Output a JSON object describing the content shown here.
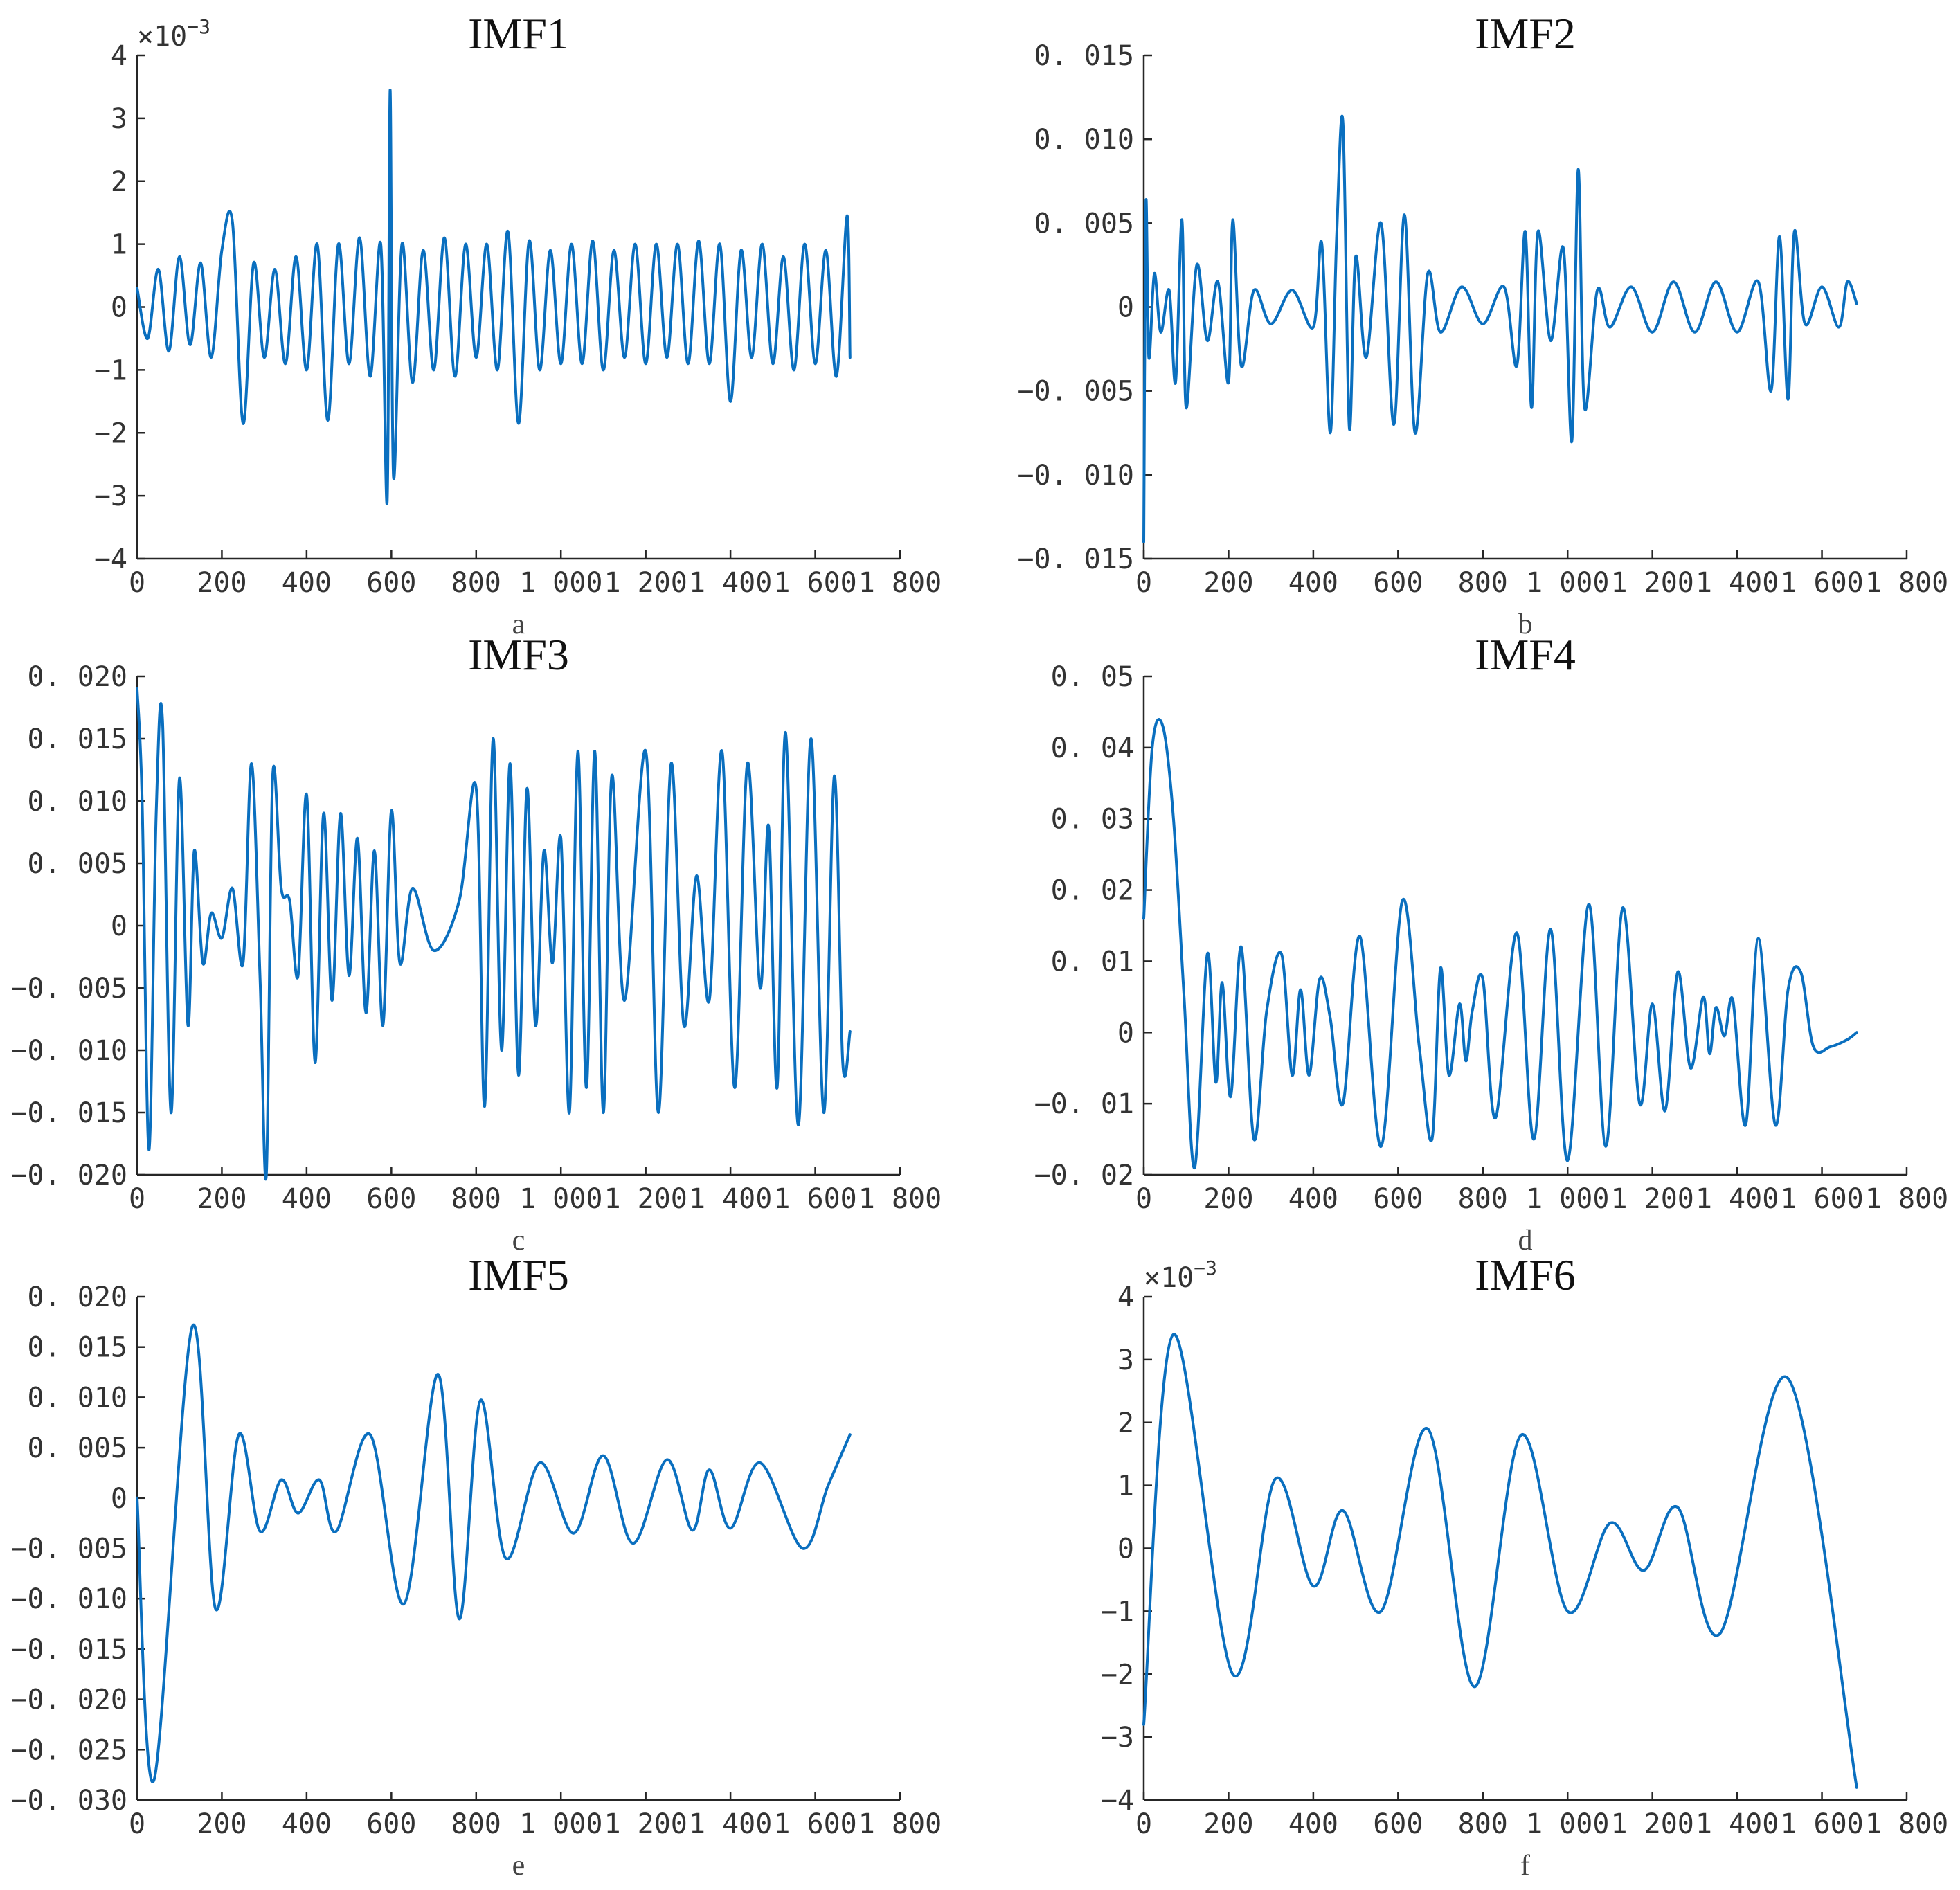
{
  "colors": {
    "series": "#0a6fbf",
    "axis": "#262626",
    "background": "#ffffff"
  },
  "chart_data": [
    {
      "type": "line",
      "title": "IMF1",
      "caption": "a",
      "multiplier": "×10",
      "multiplier_exp": "−3",
      "xlim": [
        0,
        1800
      ],
      "ylim": [
        -4,
        4
      ],
      "xticks": [
        0,
        200,
        400,
        600,
        800,
        1000,
        1200,
        1400,
        1600,
        1800
      ],
      "xtick_labels": [
        "0",
        "200",
        "400",
        "600",
        "800",
        "1 000",
        "1 200",
        "1 400",
        "1 600",
        "1 800"
      ],
      "yticks": [
        -4,
        -3,
        -2,
        -1,
        0,
        1,
        2,
        3,
        4
      ],
      "ytick_labels": [
        "−4",
        "−3",
        "−2",
        "−1",
        "0",
        "1",
        "2",
        "3",
        "4"
      ],
      "series": [
        {
          "x": [
            0,
            25,
            50,
            75,
            100,
            125,
            150,
            175,
            200,
            225,
            250,
            275,
            300,
            325,
            350,
            375,
            400,
            425,
            450,
            475,
            500,
            525,
            550,
            575,
            590,
            597,
            605,
            625,
            650,
            675,
            700,
            725,
            750,
            775,
            800,
            825,
            850,
            875,
            900,
            925,
            950,
            975,
            1000,
            1025,
            1050,
            1075,
            1100,
            1125,
            1150,
            1175,
            1200,
            1225,
            1250,
            1275,
            1300,
            1325,
            1350,
            1375,
            1400,
            1425,
            1450,
            1475,
            1500,
            1525,
            1550,
            1575,
            1600,
            1625,
            1650,
            1675,
            1682
          ],
          "y": [
            0.3,
            -0.5,
            0.6,
            -0.7,
            0.8,
            -0.6,
            0.7,
            -0.8,
            0.9,
            1.35,
            -1.85,
            0.7,
            -0.8,
            0.6,
            -0.9,
            0.8,
            -1.0,
            1.0,
            -1.8,
            1.0,
            -0.9,
            1.1,
            -1.1,
            1.0,
            -3.1,
            3.45,
            -2.7,
            1.0,
            -1.2,
            0.9,
            -1.0,
            1.1,
            -1.1,
            1.0,
            -0.8,
            1.0,
            -1.0,
            1.2,
            -1.85,
            1.05,
            -1.0,
            0.9,
            -0.9,
            1.0,
            -0.9,
            1.05,
            -1.0,
            0.9,
            -0.8,
            1.0,
            -0.9,
            1.0,
            -0.8,
            1.0,
            -0.9,
            1.05,
            -0.9,
            1.0,
            -1.5,
            0.9,
            -0.8,
            1.0,
            -0.9,
            0.8,
            -1.0,
            1.0,
            -0.9,
            0.9,
            -1.1,
            1.45,
            -0.8
          ]
        }
      ]
    },
    {
      "type": "line",
      "title": "IMF2",
      "caption": "b",
      "xlim": [
        0,
        1800
      ],
      "ylim": [
        -0.015,
        0.015
      ],
      "xticks": [
        0,
        200,
        400,
        600,
        800,
        1000,
        1200,
        1400,
        1600,
        1800
      ],
      "xtick_labels": [
        "0",
        "200",
        "400",
        "600",
        "800",
        "1 000",
        "1 200",
        "1 400",
        "1 600",
        "1 800"
      ],
      "yticks": [
        -0.015,
        -0.01,
        -0.005,
        0,
        0.005,
        0.01,
        0.015
      ],
      "ytick_labels": [
        "−0. 015",
        "−0. 010",
        "−0. 005",
        "0",
        "0. 005",
        "0. 010",
        "0. 015"
      ],
      "series": [
        {
          "x": [
            0,
            5,
            12,
            25,
            40,
            60,
            75,
            90,
            100,
            125,
            150,
            175,
            200,
            210,
            230,
            260,
            300,
            350,
            400,
            420,
            440,
            455,
            470,
            485,
            500,
            525,
            560,
            590,
            615,
            640,
            670,
            700,
            750,
            800,
            850,
            880,
            900,
            915,
            930,
            960,
            990,
            1010,
            1025,
            1040,
            1070,
            1100,
            1150,
            1200,
            1250,
            1300,
            1350,
            1400,
            1450,
            1480,
            1500,
            1520,
            1535,
            1560,
            1600,
            1640,
            1660,
            1682
          ],
          "y": [
            -0.014,
            0.0062,
            -0.003,
            0.002,
            -0.0015,
            0.001,
            -0.0045,
            0.0052,
            -0.006,
            0.0025,
            -0.002,
            0.0015,
            -0.0045,
            0.0052,
            -0.0035,
            0.001,
            -0.001,
            0.001,
            -0.0012,
            0.0038,
            -0.0075,
            0.0042,
            0.011,
            -0.0072,
            0.003,
            -0.003,
            0.005,
            -0.007,
            0.0055,
            -0.0075,
            0.002,
            -0.0015,
            0.0012,
            -0.001,
            0.0012,
            -0.0035,
            0.0045,
            -0.006,
            0.0045,
            -0.002,
            0.0035,
            -0.008,
            0.0082,
            -0.006,
            0.001,
            -0.0012,
            0.0012,
            -0.0015,
            0.0015,
            -0.0015,
            0.0015,
            -0.0015,
            0.0015,
            -0.005,
            0.0042,
            -0.0055,
            0.0045,
            -0.001,
            0.0012,
            -0.0012,
            0.0015,
            0.0002
          ]
        }
      ]
    },
    {
      "type": "line",
      "title": "IMF3",
      "caption": "c",
      "xlim": [
        0,
        1800
      ],
      "ylim": [
        -0.02,
        0.02
      ],
      "xticks": [
        0,
        200,
        400,
        600,
        800,
        1000,
        1200,
        1400,
        1600,
        1800
      ],
      "xtick_labels": [
        "0",
        "200",
        "400",
        "600",
        "800",
        "1 000",
        "1 200",
        "1 400",
        "1 600",
        "1 800"
      ],
      "yticks": [
        -0.02,
        -0.015,
        -0.01,
        -0.005,
        0,
        0.005,
        0.01,
        0.015,
        0.02
      ],
      "ytick_labels": [
        "−0. 020",
        "−0. 015",
        "−0. 010",
        "−0. 005",
        "0",
        "0. 005",
        "0. 010",
        "0. 015",
        "0. 020"
      ],
      "series": [
        {
          "x": [
            0,
            12,
            28,
            45,
            60,
            80,
            100,
            120,
            135,
            155,
            175,
            200,
            225,
            250,
            270,
            290,
            305,
            320,
            340,
            360,
            380,
            400,
            420,
            440,
            460,
            480,
            500,
            520,
            540,
            560,
            580,
            600,
            620,
            650,
            700,
            760,
            800,
            820,
            840,
            860,
            880,
            900,
            920,
            940,
            960,
            980,
            1000,
            1020,
            1040,
            1060,
            1080,
            1100,
            1120,
            1150,
            1200,
            1230,
            1260,
            1290,
            1320,
            1350,
            1380,
            1410,
            1440,
            1470,
            1490,
            1510,
            1530,
            1560,
            1590,
            1620,
            1645,
            1665,
            1682
          ],
          "y": [
            0.019,
            0.01,
            -0.018,
            0.009,
            0.0165,
            -0.015,
            0.0118,
            -0.008,
            0.006,
            -0.003,
            0.001,
            -0.001,
            0.003,
            -0.003,
            0.013,
            -0.004,
            -0.02,
            0.012,
            0.003,
            0.002,
            -0.004,
            0.0105,
            -0.011,
            0.009,
            -0.006,
            0.009,
            -0.004,
            0.007,
            -0.007,
            0.006,
            -0.008,
            0.0092,
            -0.003,
            0.003,
            -0.002,
            0.002,
            0.011,
            -0.0145,
            0.015,
            -0.01,
            0.013,
            -0.012,
            0.011,
            -0.008,
            0.006,
            -0.003,
            0.007,
            -0.015,
            0.014,
            -0.013,
            0.014,
            -0.015,
            0.012,
            -0.006,
            0.014,
            -0.015,
            0.013,
            -0.008,
            0.004,
            -0.006,
            0.014,
            -0.013,
            0.013,
            -0.005,
            0.008,
            -0.013,
            0.0155,
            -0.016,
            0.015,
            -0.015,
            0.012,
            -0.011,
            -0.0085
          ]
        }
      ]
    },
    {
      "type": "line",
      "title": "IMF4",
      "caption": "d",
      "xlim": [
        0,
        1800
      ],
      "ylim": [
        -0.02,
        0.05
      ],
      "xticks": [
        0,
        200,
        400,
        600,
        800,
        1000,
        1200,
        1400,
        1600,
        1800
      ],
      "xtick_labels": [
        "0",
        "200",
        "400",
        "600",
        "800",
        "1 000",
        "1 200",
        "1 400",
        "1 600",
        "1 800"
      ],
      "yticks": [
        -0.02,
        -0.01,
        0,
        0.01,
        0.02,
        0.03,
        0.04,
        0.05
      ],
      "ytick_labels": [
        "−0. 02",
        "−0. 01",
        "0",
        "0. 01",
        "0. 02",
        "0. 03",
        "0. 04",
        "0. 05"
      ],
      "series": [
        {
          "x": [
            0,
            20,
            45,
            70,
            95,
            120,
            150,
            170,
            185,
            205,
            230,
            260,
            290,
            325,
            350,
            370,
            390,
            415,
            440,
            470,
            510,
            560,
            610,
            650,
            680,
            700,
            720,
            745,
            760,
            775,
            800,
            830,
            880,
            920,
            960,
            1000,
            1050,
            1090,
            1130,
            1170,
            1200,
            1230,
            1260,
            1290,
            1320,
            1335,
            1350,
            1370,
            1390,
            1420,
            1450,
            1490,
            1520,
            1550,
            1580,
            1620,
            1660,
            1682
          ],
          "y": [
            0.016,
            0.04,
            0.043,
            0.03,
            0.005,
            -0.019,
            0.011,
            -0.007,
            0.007,
            -0.009,
            0.012,
            -0.015,
            0.003,
            0.011,
            -0.006,
            0.006,
            -0.006,
            0.0075,
            0.002,
            -0.01,
            0.0135,
            -0.016,
            0.0185,
            -0.002,
            -0.015,
            0.009,
            -0.006,
            0.004,
            -0.004,
            0.003,
            0.0075,
            -0.012,
            0.014,
            -0.015,
            0.0145,
            -0.018,
            0.018,
            -0.016,
            0.0175,
            -0.01,
            0.004,
            -0.011,
            0.0085,
            -0.005,
            0.005,
            -0.003,
            0.0035,
            -0.0005,
            0.0045,
            -0.013,
            0.0132,
            -0.013,
            0.006,
            0.0085,
            -0.002,
            -0.002,
            -0.001,
            0
          ]
        }
      ]
    },
    {
      "type": "line",
      "title": "IMF5",
      "caption": "e",
      "xlim": [
        0,
        1800
      ],
      "ylim": [
        -0.03,
        0.02
      ],
      "xticks": [
        0,
        200,
        400,
        600,
        800,
        1000,
        1200,
        1400,
        1600,
        1800
      ],
      "xtick_labels": [
        "0",
        "200",
        "400",
        "600",
        "800",
        "1 000",
        "1 200",
        "1 400",
        "1 600",
        "1 800"
      ],
      "yticks": [
        -0.03,
        -0.025,
        -0.02,
        -0.015,
        -0.01,
        -0.005,
        0,
        0.005,
        0.01,
        0.015,
        0.02
      ],
      "ytick_labels": [
        "−0. 030",
        "−0. 025",
        "−0. 020",
        "−0. 015",
        "−0. 010",
        "−0. 005",
        "0",
        "0. 005",
        "0. 010",
        "0. 015",
        "0. 020"
      ],
      "series": [
        {
          "x": [
            0,
            40,
            130,
            185,
            240,
            290,
            340,
            380,
            430,
            470,
            550,
            630,
            710,
            760,
            810,
            870,
            950,
            1030,
            1100,
            1170,
            1250,
            1310,
            1350,
            1400,
            1470,
            1570,
            1630,
            1682
          ],
          "y": [
            0,
            -0.028,
            0.017,
            -0.011,
            0.0063,
            -0.0033,
            0.0018,
            -0.0015,
            0.0018,
            -0.0033,
            0.0063,
            -0.0105,
            0.0123,
            -0.012,
            0.0097,
            -0.006,
            0.0035,
            -0.0035,
            0.0042,
            -0.0045,
            0.0038,
            -0.0032,
            0.0028,
            -0.003,
            0.0035,
            -0.005,
            0.0012,
            0.0063
          ]
        }
      ]
    },
    {
      "type": "line",
      "title": "IMF6",
      "caption": "f",
      "multiplier": "×10",
      "multiplier_exp": "−3",
      "xlim": [
        0,
        1800
      ],
      "ylim": [
        -4,
        4
      ],
      "xticks": [
        0,
        200,
        400,
        600,
        800,
        1000,
        1200,
        1400,
        1600,
        1800
      ],
      "xtick_labels": [
        "0",
        "200",
        "400",
        "600",
        "800",
        "1 000",
        "1 200",
        "1 400",
        "1 600",
        "1 800"
      ],
      "yticks": [
        -4,
        -3,
        -2,
        -1,
        0,
        1,
        2,
        3,
        4
      ],
      "ytick_labels": [
        "−4",
        "−3",
        "−2",
        "−1",
        "0",
        "1",
        "2",
        "3",
        "4"
      ],
      "series": [
        {
          "x": [
            0,
            70,
            210,
            310,
            400,
            470,
            560,
            670,
            780,
            890,
            1000,
            1100,
            1180,
            1260,
            1360,
            1520,
            1682
          ],
          "y": [
            -2.8,
            3.4,
            -2.0,
            1.1,
            -0.6,
            0.6,
            -1.0,
            1.9,
            -2.2,
            1.8,
            -1.0,
            0.4,
            -0.35,
            0.65,
            -1.35,
            2.7,
            -3.8
          ]
        }
      ]
    }
  ]
}
